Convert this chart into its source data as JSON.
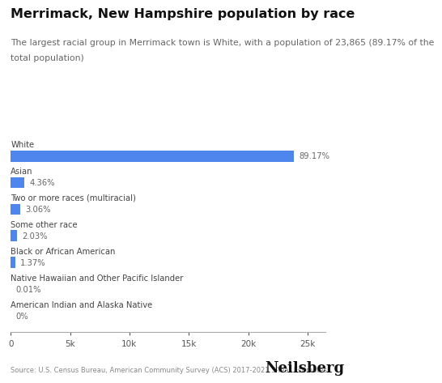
{
  "title": "Merrimack, New Hampshire population by race",
  "subtitle_line1": "The largest racial group in Merrimack town is White, with a population of 23,865 (89.17% of the",
  "subtitle_line2": "total population)",
  "categories": [
    "White",
    "Asian",
    "Two or more races (multiracial)",
    "Some other race",
    "Black or African American",
    "Native Hawaiian and Other Pacific Islander",
    "American Indian and Alaska Native"
  ],
  "values": [
    23865,
    1167,
    819,
    544,
    367,
    3,
    0
  ],
  "percentages": [
    "89.17%",
    "4.36%",
    "3.06%",
    "2.03%",
    "1.37%",
    "0.01%",
    "0%"
  ],
  "bar_color": "#4E86EE",
  "xlim": [
    0,
    26500
  ],
  "xticks": [
    0,
    5000,
    10000,
    15000,
    20000,
    25000
  ],
  "xtick_labels": [
    "0",
    "5k",
    "10k",
    "15k",
    "20k",
    "25k"
  ],
  "source": "Source: U.S. Census Bureau, American Community Survey (ACS) 2017-2021 5-Year Estimates",
  "brand": "Neilsberg",
  "bg_color": "#ffffff",
  "title_fontsize": 11.5,
  "subtitle_fontsize": 7.8,
  "category_fontsize": 7.2,
  "pct_fontsize": 7.2,
  "tick_fontsize": 7.5,
  "source_fontsize": 6.0,
  "brand_fontsize": 13
}
